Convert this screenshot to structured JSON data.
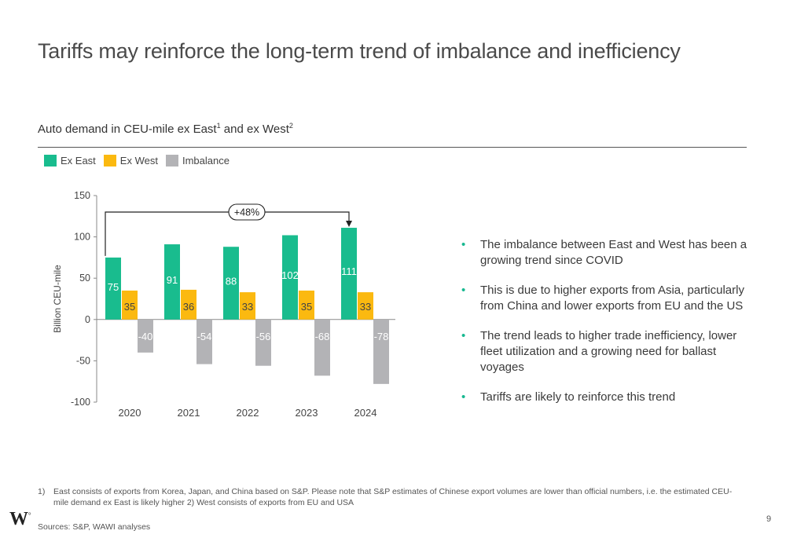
{
  "title": "Tariffs may reinforce the long-term trend of imbalance and inefficiency",
  "subtitle": {
    "text_a": "Auto demand in CEU-mile ex East",
    "sup_a": "1",
    "text_b": " and ex West",
    "sup_b": "2"
  },
  "colors": {
    "ex_east": "#19bc8e",
    "ex_west": "#fbb910",
    "imbalance": "#b3b3b6",
    "accent": "#17b890"
  },
  "chart_data": {
    "type": "bar",
    "categories": [
      "2020",
      "2021",
      "2022",
      "2023",
      "2024"
    ],
    "series": [
      {
        "name": "Ex East",
        "values": [
          75,
          91,
          88,
          102,
          111
        ]
      },
      {
        "name": "Ex West",
        "values": [
          35,
          36,
          33,
          35,
          33
        ]
      },
      {
        "name": "Imbalance",
        "values": [
          -40,
          -54,
          -56,
          -68,
          -78
        ]
      }
    ],
    "ylabel": "Billion CEU-mile",
    "ylim": [
      -100,
      150
    ],
    "yticks": [
      150,
      100,
      50,
      0,
      -50,
      -100
    ],
    "annotation": "+48%",
    "legend_position": "top-left",
    "grid": false
  },
  "bullets": [
    "The imbalance between East and West has been a growing trend since COVID",
    "This is due to higher exports from Asia, particularly from China and lower exports from EU and the US",
    "The trend leads to higher trade inefficiency, lower fleet utilization and a growing need for ballast voyages",
    "Tariffs are likely to reinforce this trend"
  ],
  "footnote": {
    "marker": "1)",
    "text": "East consists of exports from Korea, Japan, and China based on S&P. Please note that S&P estimates of Chinese export volumes are lower than official numbers, i.e. the estimated CEU-mile demand ex East is likely higher 2) West consists of exports from EU and USA"
  },
  "sources": "Sources: S&P, WAWI analyses",
  "logo": {
    "letter": "W",
    "mark": "°"
  },
  "page_number": "9"
}
